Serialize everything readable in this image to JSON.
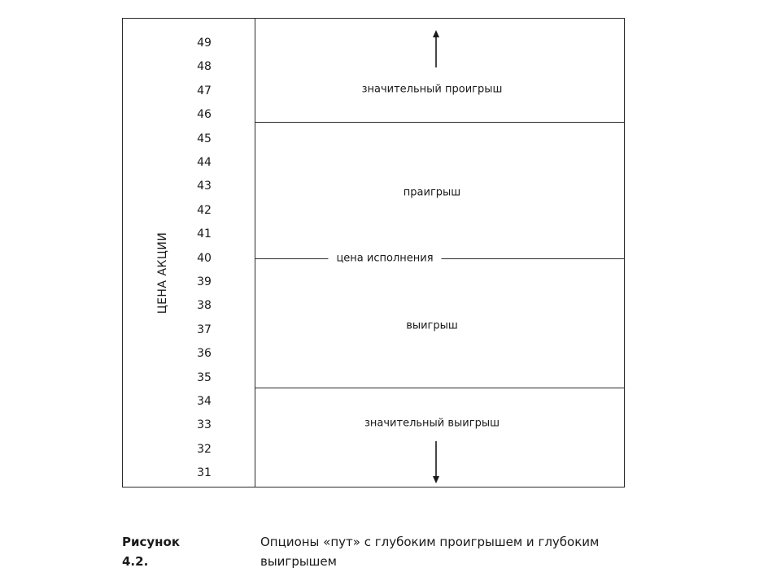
{
  "axis": {
    "title": "ЦЕНА АКЦИИ",
    "ticks": [
      "49",
      "48",
      "47",
      "46",
      "45",
      "44",
      "43",
      "42",
      "41",
      "40",
      "39",
      "38",
      "37",
      "36",
      "35",
      "34",
      "33",
      "32",
      "31"
    ]
  },
  "zones": {
    "big_loss": "значительный проигрыш",
    "loss": "праигрыш",
    "strike": "цена исполнения",
    "gain": "выигрыш",
    "big_gain": "значительный выигрыш"
  },
  "caption": {
    "label": "Рисунок 4.2.",
    "text": "Опционы «пут» с глубоким проигрышем и глубоким выигрышем"
  }
}
